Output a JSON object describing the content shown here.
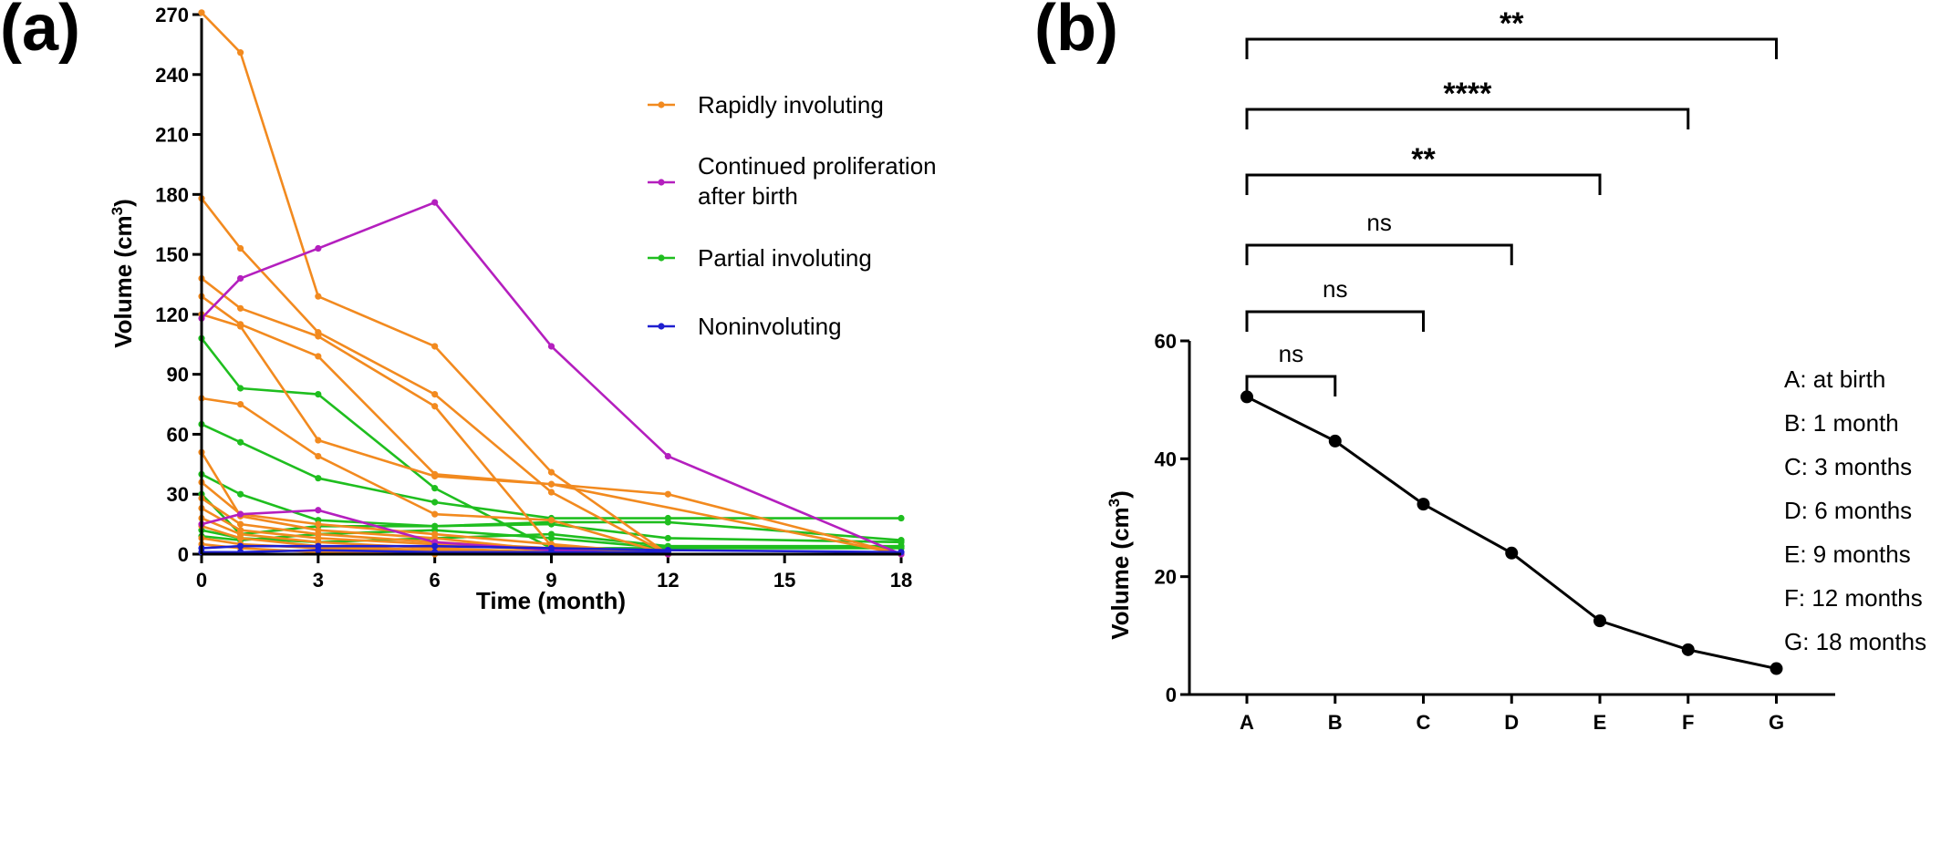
{
  "panels": {
    "a": {
      "label": "(a)"
    },
    "b": {
      "label": "(b)"
    }
  },
  "chart_data": [
    {
      "panel": "(a)",
      "type": "line",
      "xlabel": "Time (month)",
      "ylabel": "Volume (cm",
      "ylabel_sup": "3",
      "ylabel_end": ")",
      "xlim": [
        0,
        18
      ],
      "ylim": [
        0,
        280
      ],
      "xticks": [
        0,
        3,
        6,
        9,
        12,
        15,
        18
      ],
      "yticks": [
        0,
        30,
        60,
        90,
        120,
        150,
        180,
        210,
        240,
        270
      ],
      "legend": [
        {
          "lines": [
            "Rapidly involuting"
          ],
          "color": "#F28A1F"
        },
        {
          "lines": [
            "Continued proliferation",
            "after birth"
          ],
          "color": "#B41FBE"
        },
        {
          "lines": [
            "Partial involuting"
          ],
          "color": "#1FBE1F"
        },
        {
          "lines": [
            "Noninvoluting"
          ],
          "color": "#1F1FD0"
        }
      ],
      "series": [
        {
          "group": "Partial involuting",
          "color": "#1FBE1F",
          "x": [
            0,
            1,
            3,
            6,
            9,
            12,
            18
          ],
          "y": [
            108,
            83,
            80,
            33,
            3,
            3,
            4
          ]
        },
        {
          "group": "Partial involuting",
          "color": "#1FBE1F",
          "x": [
            0,
            1,
            3,
            6,
            9,
            12,
            18
          ],
          "y": [
            65,
            56,
            38,
            26,
            18,
            18,
            18
          ]
        },
        {
          "group": "Partial involuting",
          "color": "#1FBE1F",
          "x": [
            0,
            1,
            3,
            6,
            9,
            12,
            18
          ],
          "y": [
            40,
            30,
            17,
            14,
            16,
            16,
            7
          ]
        },
        {
          "group": "Partial involuting",
          "color": "#1FBE1F",
          "x": [
            0,
            1,
            3,
            6,
            9,
            12,
            18
          ],
          "y": [
            30,
            10,
            14,
            14,
            15,
            8,
            6
          ]
        },
        {
          "group": "Partial involuting",
          "color": "#1FBE1F",
          "x": [
            0,
            1,
            3,
            6,
            9,
            12,
            18
          ],
          "y": [
            12,
            8,
            6,
            8,
            10,
            4,
            4
          ]
        },
        {
          "group": "Partial involuting",
          "color": "#1FBE1F",
          "x": [
            0,
            1,
            3,
            6,
            9,
            12,
            18
          ],
          "y": [
            9,
            7,
            10,
            12,
            8,
            3,
            3
          ]
        },
        {
          "group": "Rapidly involuting",
          "color": "#F28A1F",
          "x": [
            0,
            1,
            3,
            6,
            9,
            12
          ],
          "y": [
            271,
            251,
            129,
            104,
            41,
            0
          ]
        },
        {
          "group": "Rapidly involuting",
          "color": "#F28A1F",
          "x": [
            0,
            1,
            3,
            6,
            9,
            12
          ],
          "y": [
            178,
            153,
            111,
            80,
            31,
            0
          ]
        },
        {
          "group": "Rapidly involuting",
          "color": "#F28A1F",
          "x": [
            0,
            1,
            3,
            6,
            9,
            12
          ],
          "y": [
            138,
            123,
            109,
            74,
            4,
            0
          ]
        },
        {
          "group": "Rapidly involuting",
          "color": "#F28A1F",
          "x": [
            0,
            1,
            3,
            6,
            9,
            18
          ],
          "y": [
            129,
            115,
            99,
            40,
            35,
            0
          ]
        },
        {
          "group": "Rapidly involuting",
          "color": "#F28A1F",
          "x": [
            0,
            1,
            3,
            6,
            9,
            12,
            18
          ],
          "y": [
            120,
            114,
            57,
            39,
            35,
            30,
            0
          ]
        },
        {
          "group": "Rapidly involuting",
          "color": "#F28A1F",
          "x": [
            0,
            1,
            3,
            6,
            9,
            12
          ],
          "y": [
            78,
            75,
            49,
            20,
            17,
            0
          ]
        },
        {
          "group": "Rapidly involuting",
          "color": "#F28A1F",
          "x": [
            0,
            1,
            3,
            6,
            9,
            12
          ],
          "y": [
            51,
            19,
            12,
            8,
            2,
            0
          ]
        },
        {
          "group": "Rapidly involuting",
          "color": "#F28A1F",
          "x": [
            0,
            1,
            3,
            6,
            9,
            12
          ],
          "y": [
            36,
            20,
            15,
            10,
            5,
            0
          ]
        },
        {
          "group": "Rapidly involuting",
          "color": "#F28A1F",
          "x": [
            0,
            1,
            3,
            6,
            9,
            12
          ],
          "y": [
            28,
            15,
            10,
            6,
            3,
            0
          ]
        },
        {
          "group": "Rapidly involuting",
          "color": "#F28A1F",
          "x": [
            0,
            1,
            3,
            6,
            9,
            12
          ],
          "y": [
            23,
            12,
            8,
            5,
            2,
            0
          ]
        },
        {
          "group": "Rapidly involuting",
          "color": "#F28A1F",
          "x": [
            0,
            1,
            3,
            6,
            9,
            12
          ],
          "y": [
            18,
            10,
            6,
            3,
            1,
            0
          ]
        },
        {
          "group": "Rapidly involuting",
          "color": "#F28A1F",
          "x": [
            0,
            1,
            3,
            6,
            12
          ],
          "y": [
            14,
            8,
            4,
            2,
            0
          ]
        },
        {
          "group": "Rapidly involuting",
          "color": "#F28A1F",
          "x": [
            0,
            1,
            3,
            6,
            12
          ],
          "y": [
            8,
            5,
            3,
            1,
            0
          ]
        },
        {
          "group": "Rapidly involuting",
          "color": "#F28A1F",
          "x": [
            0,
            1,
            3,
            6
          ],
          "y": [
            5,
            3,
            1,
            0
          ]
        },
        {
          "group": "Continued proliferation after birth",
          "color": "#B41FBE",
          "x": [
            0,
            1,
            3,
            6,
            9,
            12,
            18
          ],
          "y": [
            118,
            138,
            153,
            176,
            104,
            49,
            0
          ]
        },
        {
          "group": "Continued proliferation after birth",
          "color": "#B41FBE",
          "x": [
            0,
            1,
            3,
            6,
            9,
            12
          ],
          "y": [
            15,
            20,
            22,
            6,
            2,
            0
          ]
        },
        {
          "group": "Noninvoluting",
          "color": "#1F1FD0",
          "x": [
            0,
            1,
            3,
            6,
            9,
            12,
            18
          ],
          "y": [
            3,
            4,
            4,
            4,
            3,
            2,
            1
          ]
        },
        {
          "group": "Noninvoluting",
          "color": "#1F1FD0",
          "x": [
            0,
            1,
            3,
            6,
            9,
            12
          ],
          "y": [
            1,
            1,
            2,
            1,
            1,
            1
          ]
        }
      ]
    },
    {
      "panel": "(b)",
      "type": "line",
      "xlabel": "",
      "ylabel": "Volume (cm",
      "ylabel_sup": "3",
      "ylabel_end": ")",
      "ylim": [
        0,
        60
      ],
      "yticks": [
        0,
        20,
        40,
        60
      ],
      "categories": [
        "A",
        "B",
        "C",
        "D",
        "E",
        "F",
        "G"
      ],
      "values": [
        50.5,
        43,
        32.3,
        24,
        12.5,
        7.6,
        4.4
      ],
      "category_key": [
        "A: at birth",
        "B: 1 month",
        "C: 3 months",
        "D: 6 months",
        "E: 9 months",
        "F: 12 months",
        "G: 18 months"
      ],
      "significance": [
        {
          "from": "A",
          "to": "B",
          "label": "ns"
        },
        {
          "from": "A",
          "to": "C",
          "label": "ns"
        },
        {
          "from": "A",
          "to": "D",
          "label": "ns"
        },
        {
          "from": "A",
          "to": "E",
          "label": "**"
        },
        {
          "from": "A",
          "to": "F",
          "label": "****"
        },
        {
          "from": "A",
          "to": "G",
          "label": "**"
        }
      ]
    }
  ]
}
